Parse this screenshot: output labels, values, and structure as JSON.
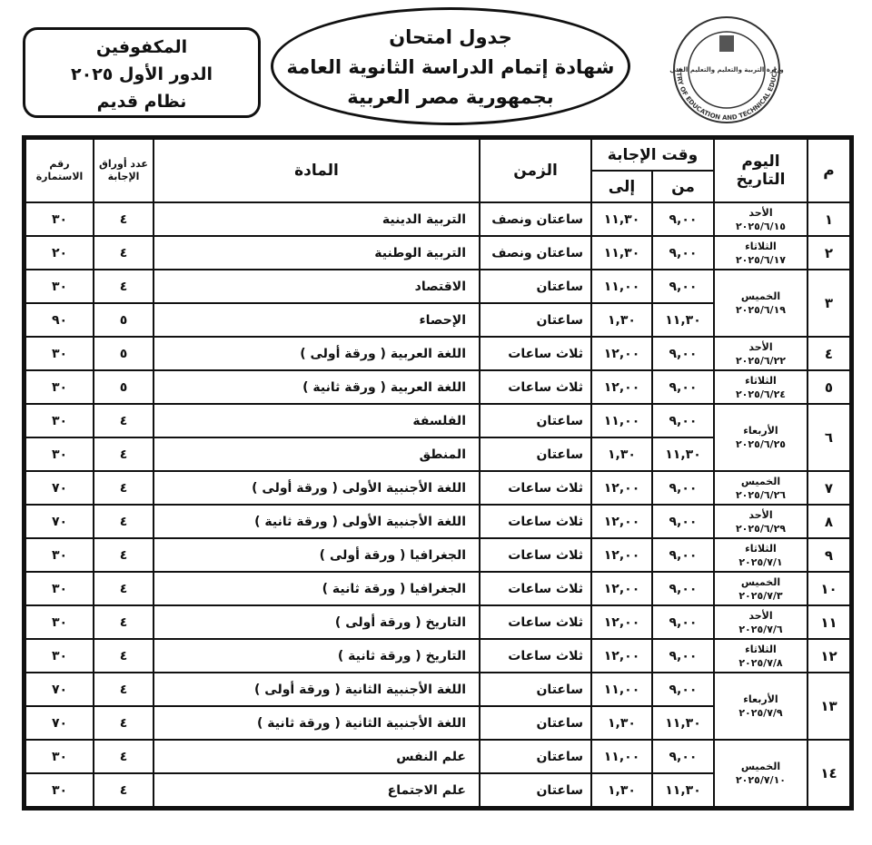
{
  "header": {
    "title_lines": [
      "جدول امتحان",
      "شهادة إتمام الدراسة الثانوية العامة",
      "بجمهورية مصر العربية"
    ],
    "side_box_lines": [
      "المكفوفين",
      "الدور الأول ٢٠٢٥",
      "نظام قديم"
    ],
    "logo_arabic": "وزارة التربية والتعليم والتعليم الفني",
    "logo_english": "MINISTRY OF EDUCATION AND TECHNICAL EDUCATION"
  },
  "table": {
    "headers": {
      "no": "م",
      "day": "اليوم",
      "date": "التاريخ",
      "answer_time": "وقت الإجابة",
      "from": "من",
      "to": "إلى",
      "duration": "الزمن",
      "subject": "المادة",
      "sheets": "عدد أوراق الإجابة",
      "form": "رقم الاستمارة"
    },
    "rows": [
      {
        "no": "١",
        "day": "الأحد",
        "date": "٢٠٢٥/٦/١٥",
        "sessions": [
          {
            "from": "٩,٠٠",
            "to": "١١,٣٠",
            "duration": "ساعتان ونصف",
            "subject": "التربية الدينية",
            "sheets": "٤",
            "form": "٣٠"
          }
        ]
      },
      {
        "no": "٢",
        "day": "الثلاثاء",
        "date": "٢٠٢٥/٦/١٧",
        "sessions": [
          {
            "from": "٩,٠٠",
            "to": "١١,٣٠",
            "duration": "ساعتان ونصف",
            "subject": "التربية الوطنية",
            "sheets": "٤",
            "form": "٢٠"
          }
        ]
      },
      {
        "no": "٣",
        "day": "الخميس",
        "date": "٢٠٢٥/٦/١٩",
        "sessions": [
          {
            "from": "٩,٠٠",
            "to": "١١,٠٠",
            "duration": "ساعتان",
            "subject": "الاقتصاد",
            "sheets": "٤",
            "form": "٣٠"
          },
          {
            "from": "١١,٣٠",
            "to": "١,٣٠",
            "duration": "ساعتان",
            "subject": "الإحصاء",
            "sheets": "٥",
            "form": "٩٠"
          }
        ]
      },
      {
        "no": "٤",
        "day": "الأحد",
        "date": "٢٠٢٥/٦/٢٢",
        "sessions": [
          {
            "from": "٩,٠٠",
            "to": "١٢,٠٠",
            "duration": "ثلاث ساعات",
            "subject": "اللغة العربية ( ورقة أولى )",
            "sheets": "٥",
            "form": "٣٠"
          }
        ]
      },
      {
        "no": "٥",
        "day": "الثلاثاء",
        "date": "٢٠٢٥/٦/٢٤",
        "sessions": [
          {
            "from": "٩,٠٠",
            "to": "١٢,٠٠",
            "duration": "ثلاث ساعات",
            "subject": "اللغة العربية ( ورقة ثانية )",
            "sheets": "٥",
            "form": "٣٠"
          }
        ]
      },
      {
        "no": "٦",
        "day": "الأربعاء",
        "date": "٢٠٢٥/٦/٢٥",
        "sessions": [
          {
            "from": "٩,٠٠",
            "to": "١١,٠٠",
            "duration": "ساعتان",
            "subject": "الفلسفة",
            "sheets": "٤",
            "form": "٣٠"
          },
          {
            "from": "١١,٣٠",
            "to": "١,٣٠",
            "duration": "ساعتان",
            "subject": "المنطق",
            "sheets": "٤",
            "form": "٣٠"
          }
        ]
      },
      {
        "no": "٧",
        "day": "الخميس",
        "date": "٢٠٢٥/٦/٢٦",
        "sessions": [
          {
            "from": "٩,٠٠",
            "to": "١٢,٠٠",
            "duration": "ثلاث ساعات",
            "subject": "اللغة الأجنبية الأولى ( ورقة أولى )",
            "sheets": "٤",
            "form": "٧٠"
          }
        ]
      },
      {
        "no": "٨",
        "day": "الأحد",
        "date": "٢٠٢٥/٦/٢٩",
        "sessions": [
          {
            "from": "٩,٠٠",
            "to": "١٢,٠٠",
            "duration": "ثلاث ساعات",
            "subject": "اللغة الأجنبية الأولى ( ورقة ثانية )",
            "sheets": "٤",
            "form": "٧٠"
          }
        ]
      },
      {
        "no": "٩",
        "day": "الثلاثاء",
        "date": "٢٠٢٥/٧/١",
        "sessions": [
          {
            "from": "٩,٠٠",
            "to": "١٢,٠٠",
            "duration": "ثلاث ساعات",
            "subject": "الجغرافيا ( ورقة أولى )",
            "sheets": "٤",
            "form": "٣٠"
          }
        ]
      },
      {
        "no": "١٠",
        "day": "الخميس",
        "date": "٢٠٢٥/٧/٣",
        "sessions": [
          {
            "from": "٩,٠٠",
            "to": "١٢,٠٠",
            "duration": "ثلاث ساعات",
            "subject": "الجغرافيا ( ورقة ثانية )",
            "sheets": "٤",
            "form": "٣٠"
          }
        ]
      },
      {
        "no": "١١",
        "day": "الأحد",
        "date": "٢٠٢٥/٧/٦",
        "sessions": [
          {
            "from": "٩,٠٠",
            "to": "١٢,٠٠",
            "duration": "ثلاث ساعات",
            "subject": "التاريخ ( ورقة أولى )",
            "sheets": "٤",
            "form": "٣٠"
          }
        ]
      },
      {
        "no": "١٢",
        "day": "الثلاثاء",
        "date": "٢٠٢٥/٧/٨",
        "sessions": [
          {
            "from": "٩,٠٠",
            "to": "١٢,٠٠",
            "duration": "ثلاث ساعات",
            "subject": "التاريخ ( ورقة ثانية )",
            "sheets": "٤",
            "form": "٣٠"
          }
        ]
      },
      {
        "no": "١٣",
        "day": "الأربعاء",
        "date": "٢٠٢٥/٧/٩",
        "sessions": [
          {
            "from": "٩,٠٠",
            "to": "١١,٠٠",
            "duration": "ساعتان",
            "subject": "اللغة الأجنبية الثانية ( ورقة أولى )",
            "sheets": "٤",
            "form": "٧٠"
          },
          {
            "from": "١١,٣٠",
            "to": "١,٣٠",
            "duration": "ساعتان",
            "subject": "اللغة الأجنبية الثانية ( ورقة ثانية )",
            "sheets": "٤",
            "form": "٧٠"
          }
        ]
      },
      {
        "no": "١٤",
        "day": "الخميس",
        "date": "٢٠٢٥/٧/١٠",
        "sessions": [
          {
            "from": "٩,٠٠",
            "to": "١١,٠٠",
            "duration": "ساعتان",
            "subject": "علم النفس",
            "sheets": "٤",
            "form": "٣٠"
          },
          {
            "from": "١١,٣٠",
            "to": "١,٣٠",
            "duration": "ساعتان",
            "subject": "علم الاجتماع",
            "sheets": "٤",
            "form": "٣٠"
          }
        ]
      }
    ]
  }
}
